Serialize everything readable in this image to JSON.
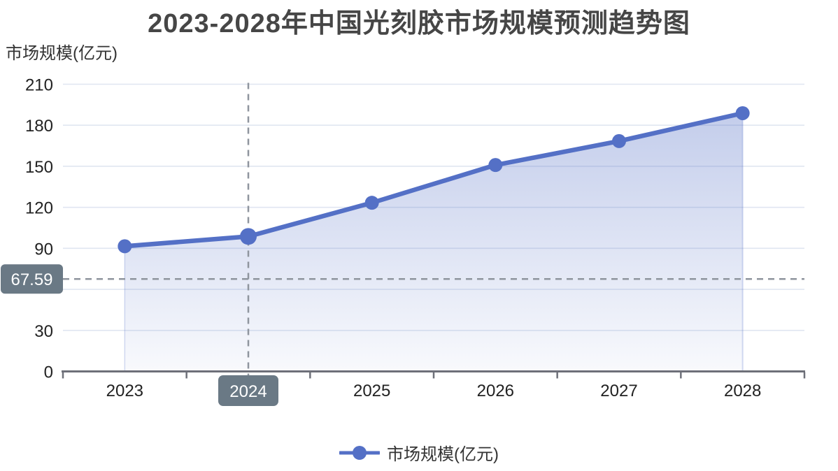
{
  "title": "2023-2028年中国光刻胶市场规模预测趋势图",
  "y_axis_name": "市场规模(亿元)",
  "legend": {
    "label": "市场规模(亿元)"
  },
  "axis_pointer": {
    "x_label": "2024",
    "y_label": "67.59",
    "x_index": 1,
    "y_value": 67.59
  },
  "colors": {
    "line": "#5470c6",
    "point": "#5470c6",
    "area_top": "rgba(84,112,198,0.35)",
    "area_bottom": "rgba(84,112,198,0.04)",
    "area_edge": "rgba(84,112,198,0.25)",
    "grid": "#e0e6f1",
    "axis": "#6e7079",
    "crosshair": "#8f959e",
    "pointer_label_bg": "#6a7985",
    "pointer_label_text": "#ffffff",
    "tick_text": "#222222",
    "title_text": "#464646"
  },
  "chart_data": {
    "type": "area",
    "title": "2023-2028年中国光刻胶市场规模预测趋势图",
    "categories": [
      "2023",
      "2024",
      "2025",
      "2026",
      "2027",
      "2028"
    ],
    "series": [
      {
        "name": "市场规模(亿元)",
        "values": [
          91.5,
          98.7,
          123.3,
          150.9,
          168.4,
          188.8
        ]
      }
    ],
    "xlabel": "",
    "ylabel": "市场规模(亿元)",
    "ylim": [
      0,
      210
    ],
    "ytick_step": 30,
    "grid": true,
    "legend_position": "bottom",
    "area": true,
    "crosshair": {
      "x": "2024",
      "y": 67.59
    }
  }
}
